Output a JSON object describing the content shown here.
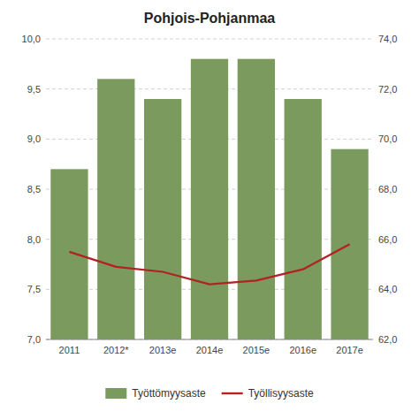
{
  "chart_data": {
    "type": "bar",
    "title": "Pohjois-Pohjanmaa",
    "categories": [
      "2011",
      "2012*",
      "2013e",
      "2014e",
      "2015e",
      "2016e",
      "2017e"
    ],
    "series": [
      {
        "name": "Työttömyysaste",
        "type": "bar",
        "color": "#7a9a5e",
        "values": [
          8.7,
          9.6,
          9.4,
          9.8,
          9.8,
          9.4,
          8.9
        ]
      },
      {
        "name": "Työllisyysaste",
        "type": "line",
        "color": "#b22222",
        "axis": "y2",
        "values": [
          65.5,
          64.9,
          64.7,
          64.2,
          64.35,
          64.8,
          65.8
        ]
      }
    ],
    "ylim": [
      7.0,
      10.0
    ],
    "yticks": [
      {
        "value": 7.0,
        "label": "7,0"
      },
      {
        "value": 7.5,
        "label": "7,5"
      },
      {
        "value": 8.0,
        "label": "8,0"
      },
      {
        "value": 8.5,
        "label": "8,5"
      },
      {
        "value": 9.0,
        "label": "9,0"
      },
      {
        "value": 9.5,
        "label": "9,5"
      },
      {
        "value": 10.0,
        "label": "10,0"
      }
    ],
    "y2lim": [
      62.0,
      74.0
    ],
    "y2ticks": [
      {
        "value": 62.0,
        "label": "62,0"
      },
      {
        "value": 64.0,
        "label": "64,0"
      },
      {
        "value": 66.0,
        "label": "66,0"
      },
      {
        "value": 68.0,
        "label": "68,0"
      },
      {
        "value": 70.0,
        "label": "70,0"
      },
      {
        "value": 72.0,
        "label": "72,0"
      },
      {
        "value": 74.0,
        "label": "74,0"
      }
    ],
    "grid": true,
    "legend": "bottom"
  }
}
